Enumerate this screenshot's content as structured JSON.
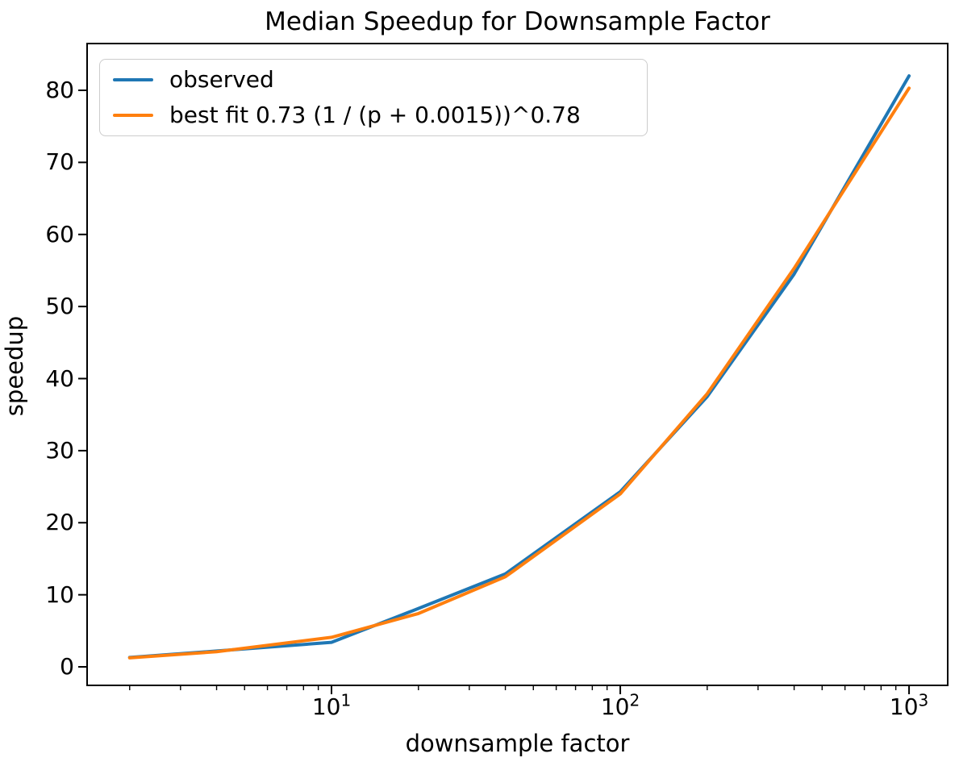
{
  "figure": {
    "background": "#ffffff",
    "text_color": "#000000"
  },
  "chart_data": {
    "type": "line",
    "title": "Median Speedup for Downsample Factor",
    "xlabel": "downsample factor",
    "ylabel": "speedup",
    "x_scale": "log",
    "grid": false,
    "legend_position": "upper left",
    "xlim": [
      1.4245,
      1361
    ],
    "ylim": [
      -2.57,
      86.49
    ],
    "x": [
      2,
      4,
      10,
      20,
      40,
      100,
      200,
      400,
      1000
    ],
    "series": [
      {
        "name": "observed",
        "color": "#1f77b4",
        "values": [
          1.3,
          2.2,
          3.4,
          8.1,
          12.9,
          24.3,
          37.5,
          54.5,
          82.0
        ]
      },
      {
        "name": "best fit 0.73 (1 / (p + 0.0015))^0.78",
        "color": "#ff7f0e",
        "values": [
          1.25,
          2.1,
          4.1,
          7.4,
          12.5,
          24.0,
          37.9,
          55.3,
          80.3
        ]
      }
    ],
    "xticks_major": [
      {
        "value": 10,
        "base": "10",
        "exp": "1"
      },
      {
        "value": 100,
        "base": "10",
        "exp": "2"
      },
      {
        "value": 1000,
        "base": "10",
        "exp": "3"
      }
    ],
    "xticks_minor": [
      2,
      3,
      4,
      5,
      6,
      7,
      8,
      9,
      20,
      30,
      40,
      50,
      60,
      70,
      80,
      90,
      200,
      300,
      400,
      500,
      600,
      700,
      800,
      900
    ],
    "yticks": [
      0,
      10,
      20,
      30,
      40,
      50,
      60,
      70,
      80
    ]
  }
}
